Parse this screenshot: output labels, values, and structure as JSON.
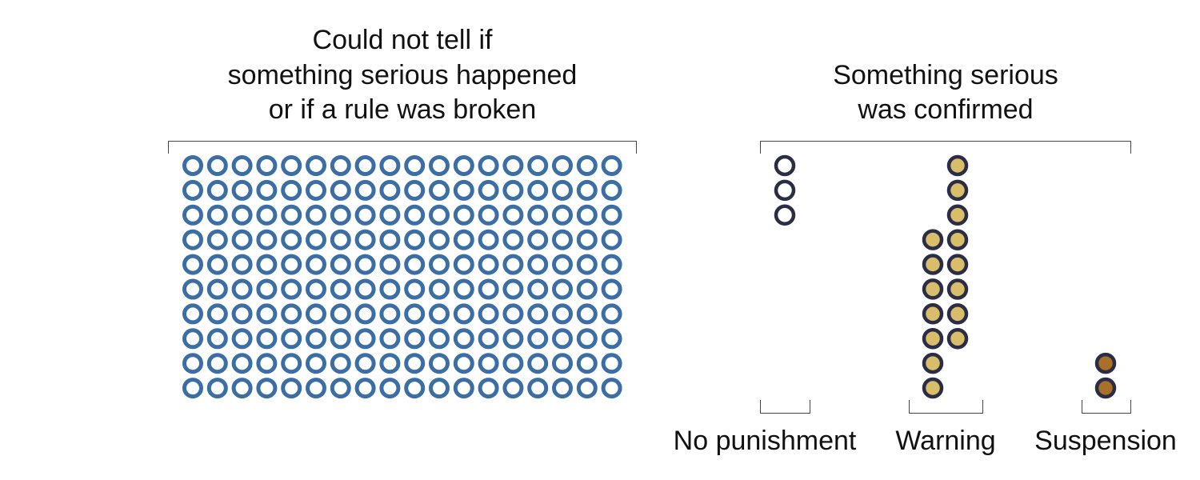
{
  "chart_data": {
    "type": "dot-matrix",
    "groups": [
      {
        "title_lines": [
          "Could not tell if",
          "something serious happened",
          "or if a rule was broken"
        ],
        "count": 180,
        "color": "#3b6ea5",
        "style": "outline"
      },
      {
        "title_lines": [
          "Something serious",
          "was confirmed"
        ],
        "categories": [
          {
            "label": "No punishment",
            "count": 3,
            "color": "#ffffff",
            "outline": "#2a2d45"
          },
          {
            "label": "Warning",
            "count": 15,
            "color": "#d8bd6a",
            "outline": "#2a2d45"
          },
          {
            "label": "Suspension",
            "count": 2,
            "color": "#a9702a",
            "outline": "#2a2d45"
          }
        ]
      }
    ]
  }
}
